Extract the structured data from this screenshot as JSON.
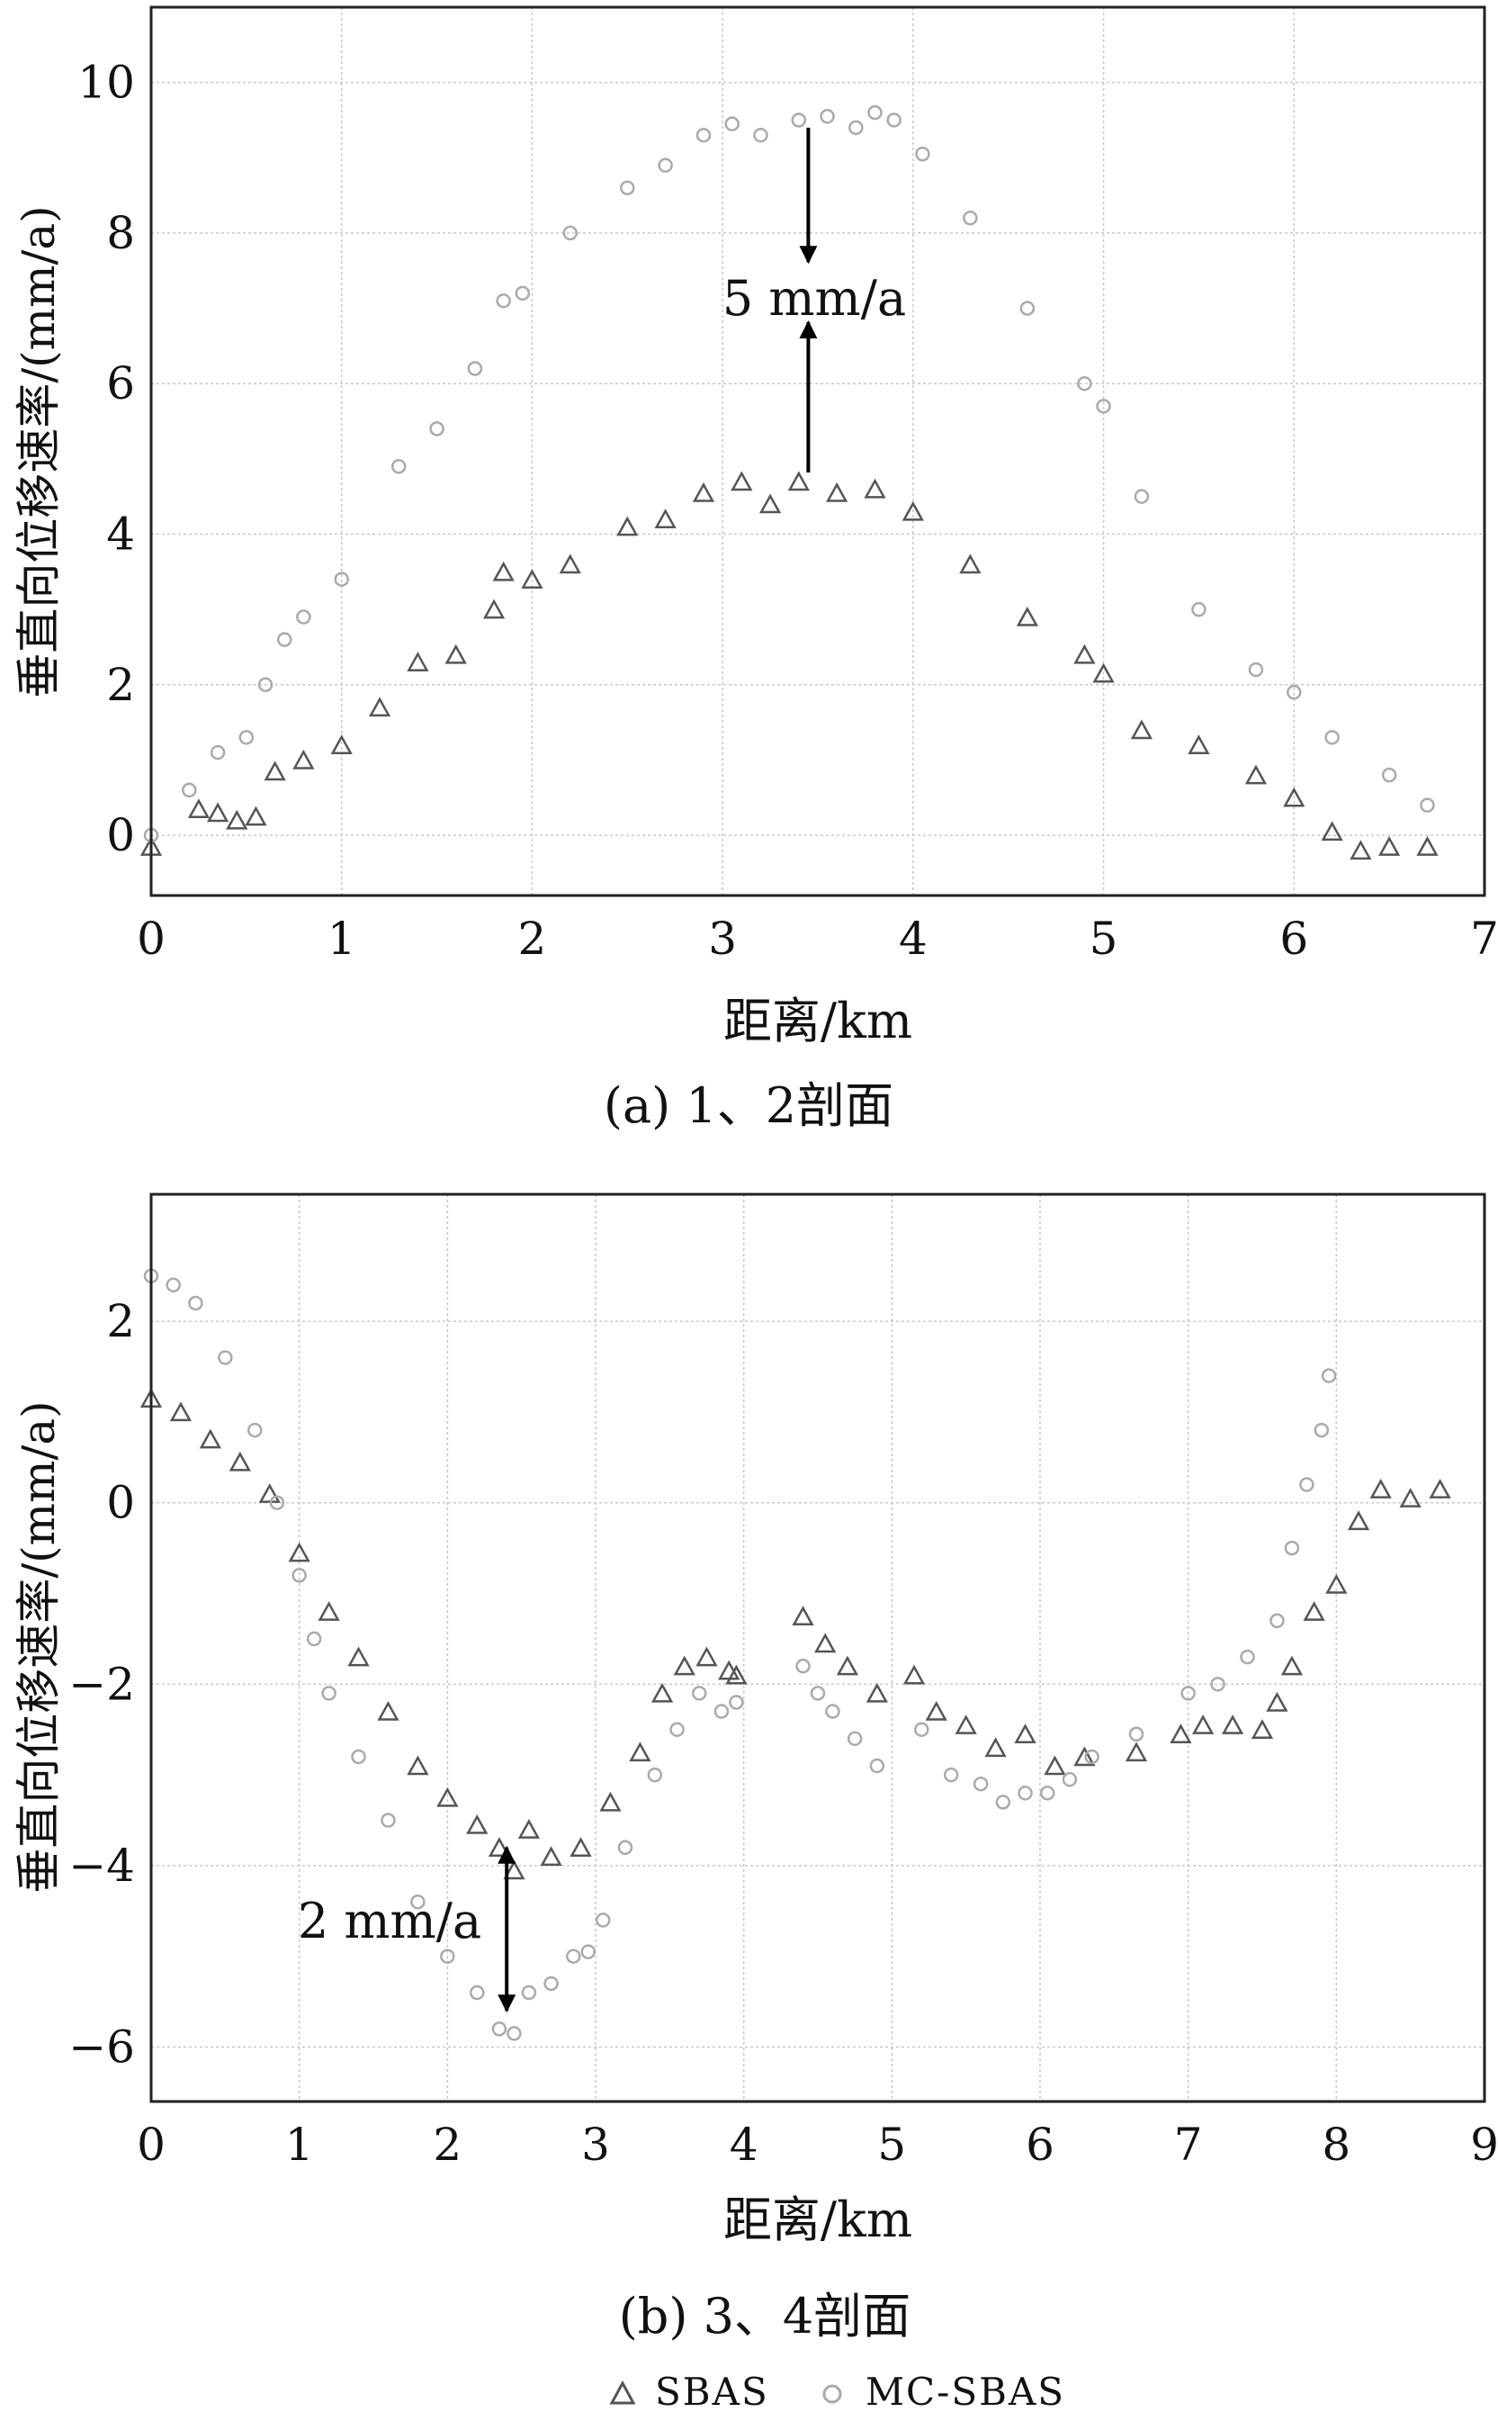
{
  "colors": {
    "sbas": "#555555",
    "mc_sbas": "#aaaaaa",
    "annotation": "#000000"
  },
  "legend": [
    {
      "marker": "triangle",
      "label": "SBAS"
    },
    {
      "marker": "circle",
      "label": "MC-SBAS"
    }
  ],
  "chart_data": [
    {
      "type": "scatter",
      "caption": "(a) 1、2剖面",
      "xlabel": "距离/km",
      "ylabel": "垂直向位移速率/(mm/a)",
      "xlim": [
        0,
        7
      ],
      "ylim": [
        -0.8,
        11
      ],
      "xticks": [
        "0",
        "1",
        "2",
        "3",
        "4",
        "5",
        "6",
        "7"
      ],
      "yticks": [
        "0",
        "2",
        "4",
        "6",
        "8",
        "10"
      ],
      "grid": true,
      "annotation": {
        "text": "5 mm/a",
        "x": 3.45,
        "from": 4.7,
        "to": 9.4
      },
      "series": [
        {
          "name": "SBAS",
          "marker": "triangle",
          "x": [
            0.0,
            0.25,
            0.35,
            0.45,
            0.55,
            0.65,
            0.8,
            1.0,
            1.2,
            1.4,
            1.6,
            1.8,
            1.85,
            2.0,
            2.2,
            2.5,
            2.7,
            2.9,
            3.1,
            3.25,
            3.4,
            3.6,
            3.8,
            4.0,
            4.3,
            4.6,
            4.9,
            5.0,
            5.2,
            5.5,
            5.8,
            6.0,
            6.2,
            6.35,
            6.5,
            6.7
          ],
          "y": [
            -0.15,
            0.35,
            0.3,
            0.2,
            0.25,
            0.85,
            1.0,
            1.2,
            1.7,
            2.3,
            2.4,
            3.0,
            3.5,
            3.4,
            3.6,
            4.1,
            4.2,
            4.55,
            4.7,
            4.4,
            4.7,
            4.55,
            4.6,
            4.3,
            3.6,
            2.9,
            2.4,
            2.15,
            1.4,
            1.2,
            0.8,
            0.5,
            0.05,
            -0.2,
            -0.15,
            -0.15
          ]
        },
        {
          "name": "MC-SBAS",
          "marker": "circle",
          "x": [
            0.0,
            0.2,
            0.35,
            0.5,
            0.6,
            0.7,
            0.8,
            1.0,
            1.3,
            1.5,
            1.7,
            1.85,
            1.95,
            2.2,
            2.5,
            2.7,
            2.9,
            3.05,
            3.2,
            3.4,
            3.55,
            3.7,
            3.8,
            3.9,
            4.05,
            4.3,
            4.6,
            4.9,
            5.0,
            5.2,
            5.5,
            5.8,
            6.0,
            6.2,
            6.5,
            6.7
          ],
          "y": [
            0.0,
            0.6,
            1.1,
            1.3,
            2.0,
            2.6,
            2.9,
            3.4,
            4.9,
            5.4,
            6.2,
            7.1,
            7.2,
            8.0,
            8.6,
            8.9,
            9.3,
            9.45,
            9.3,
            9.5,
            9.55,
            9.4,
            9.6,
            9.5,
            9.05,
            8.2,
            7.0,
            6.0,
            5.7,
            4.5,
            3.0,
            2.2,
            1.9,
            1.3,
            0.8,
            0.4
          ]
        }
      ]
    },
    {
      "type": "scatter",
      "caption": "(b) 3、4剖面",
      "xlabel": "距离/km",
      "ylabel": "垂直向位移速率/(mm/a)",
      "xlim": [
        0,
        9
      ],
      "ylim": [
        -6.6,
        3.4
      ],
      "xticks": [
        "0",
        "1",
        "2",
        "3",
        "4",
        "5",
        "6",
        "7",
        "8",
        "9"
      ],
      "yticks": [
        "2",
        "0",
        "−2",
        "−4",
        "−6"
      ],
      "grid": true,
      "annotation": {
        "text": "2 mm/a",
        "x": 2.4,
        "from": -3.8,
        "to": -5.6
      },
      "series": [
        {
          "name": "SBAS",
          "marker": "triangle",
          "x": [
            0.0,
            0.2,
            0.4,
            0.6,
            0.8,
            1.0,
            1.2,
            1.4,
            1.6,
            1.8,
            2.0,
            2.2,
            2.35,
            2.45,
            2.55,
            2.7,
            2.9,
            3.1,
            3.3,
            3.45,
            3.6,
            3.75,
            3.9,
            3.95,
            4.4,
            4.55,
            4.7,
            4.9,
            5.15,
            5.3,
            5.5,
            5.7,
            5.9,
            6.1,
            6.3,
            6.65,
            6.95,
            7.1,
            7.3,
            7.5,
            7.6,
            7.7,
            7.85,
            8.0,
            8.15,
            8.3,
            8.5,
            8.7
          ],
          "y": [
            1.15,
            1.0,
            0.7,
            0.45,
            0.1,
            -0.55,
            -1.2,
            -1.7,
            -2.3,
            -2.9,
            -3.25,
            -3.55,
            -3.8,
            -4.05,
            -3.6,
            -3.9,
            -3.8,
            -3.3,
            -2.75,
            -2.1,
            -1.8,
            -1.7,
            -1.85,
            -1.9,
            -1.25,
            -1.55,
            -1.8,
            -2.1,
            -1.9,
            -2.3,
            -2.45,
            -2.7,
            -2.55,
            -2.9,
            -2.8,
            -2.75,
            -2.55,
            -2.45,
            -2.45,
            -2.5,
            -2.2,
            -1.8,
            -1.2,
            -0.9,
            -0.2,
            0.15,
            0.05,
            0.15
          ]
        },
        {
          "name": "MC-SBAS",
          "marker": "circle",
          "x": [
            0.0,
            0.15,
            0.3,
            0.5,
            0.7,
            0.85,
            1.0,
            1.1,
            1.2,
            1.4,
            1.6,
            1.8,
            2.0,
            2.2,
            2.35,
            2.45,
            2.55,
            2.7,
            2.85,
            2.95,
            3.05,
            3.2,
            3.4,
            3.55,
            3.7,
            3.85,
            3.95,
            4.4,
            4.5,
            4.6,
            4.75,
            4.9,
            5.2,
            5.4,
            5.6,
            5.75,
            5.9,
            6.05,
            6.2,
            6.35,
            6.65,
            7.0,
            7.2,
            7.4,
            7.6,
            7.7,
            7.8,
            7.9,
            7.95
          ],
          "y": [
            2.5,
            2.4,
            2.2,
            1.6,
            0.8,
            0.0,
            -0.8,
            -1.5,
            -2.1,
            -2.8,
            -3.5,
            -4.4,
            -5.0,
            -5.4,
            -5.8,
            -5.85,
            -5.4,
            -5.3,
            -5.0,
            -4.95,
            -4.6,
            -3.8,
            -3.0,
            -2.5,
            -2.1,
            -2.3,
            -2.2,
            -1.8,
            -2.1,
            -2.3,
            -2.6,
            -2.9,
            -2.5,
            -3.0,
            -3.1,
            -3.3,
            -3.2,
            -3.2,
            -3.05,
            -2.8,
            -2.55,
            -2.1,
            -2.0,
            -1.7,
            -1.3,
            -0.5,
            0.2,
            0.8,
            1.4
          ]
        }
      ]
    }
  ]
}
